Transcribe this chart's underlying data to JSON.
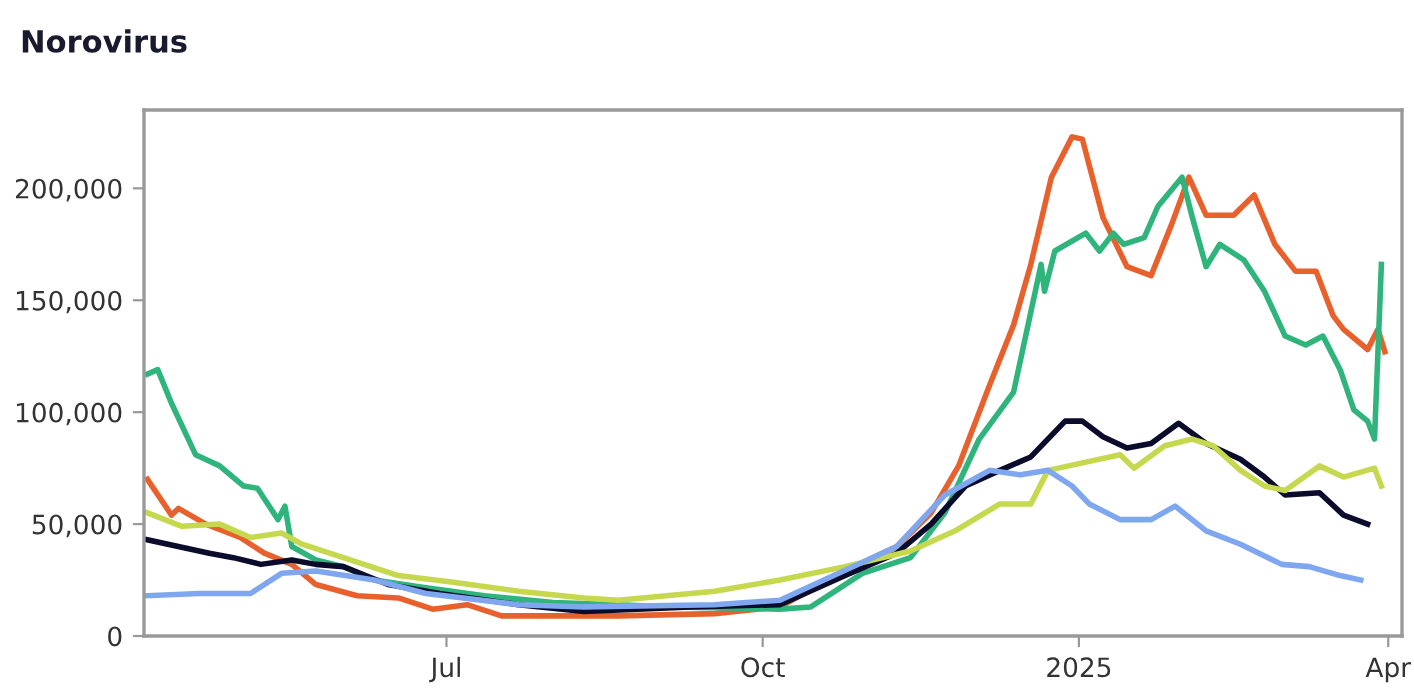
{
  "chart_data": {
    "type": "line",
    "title": "Norovirus",
    "xlim": [
      "2024-04-04",
      "2025-04-05"
    ],
    "xticks": [
      {
        "value": "2024-07-01",
        "label": "Jul"
      },
      {
        "value": "2024-10-01",
        "label": "Oct"
      },
      {
        "value": "2025-01-01",
        "label": "2025"
      },
      {
        "value": "2025-04-01",
        "label": "Apr"
      }
    ],
    "ylim": [
      0,
      235000
    ],
    "yticks": [
      {
        "value": 0,
        "label": "0"
      },
      {
        "value": 50000,
        "label": "50,000"
      },
      {
        "value": 100000,
        "label": "100,000"
      },
      {
        "value": 150000,
        "label": "150,000"
      },
      {
        "value": 200000,
        "label": "200,000"
      }
    ],
    "grid": false,
    "marker": "none",
    "line_style": "solid",
    "series": [
      {
        "color": "#e8612c",
        "x": [
          "2024-04-05",
          "2024-04-12",
          "2024-04-14",
          "2024-04-22",
          "2024-05-02",
          "2024-05-09",
          "2024-05-17",
          "2024-05-24",
          "2024-06-05",
          "2024-06-17",
          "2024-06-27",
          "2024-07-07",
          "2024-07-17",
          "2024-08-01",
          "2024-08-20",
          "2024-09-17",
          "2024-10-06",
          "2024-10-25",
          "2024-11-09",
          "2024-11-19",
          "2024-11-27",
          "2024-12-06",
          "2024-12-13",
          "2024-12-18",
          "2024-12-24",
          "2024-12-30",
          "2025-01-02",
          "2025-01-08",
          "2025-01-15",
          "2025-01-22",
          "2025-01-28",
          "2025-02-02",
          "2025-02-07",
          "2025-02-15",
          "2025-02-21",
          "2025-02-27",
          "2025-03-05",
          "2025-03-11",
          "2025-03-16",
          "2025-03-19",
          "2025-03-26",
          "2025-03-29",
          "2025-03-31"
        ],
        "values": [
          70000,
          54000,
          57000,
          50000,
          44000,
          37000,
          32000,
          23000,
          18000,
          17000,
          12000,
          14000,
          9000,
          9000,
          9000,
          10000,
          13000,
          29000,
          40000,
          55000,
          76000,
          112000,
          139000,
          166000,
          205000,
          223000,
          222000,
          187000,
          165000,
          161000,
          184000,
          205000,
          188000,
          188000,
          197000,
          175000,
          163000,
          163000,
          143000,
          137000,
          128000,
          137000,
          127000
        ]
      },
      {
        "color": "#2fb47c",
        "x": [
          "2024-04-05",
          "2024-04-08",
          "2024-04-12",
          "2024-04-19",
          "2024-04-26",
          "2024-05-03",
          "2024-05-07",
          "2024-05-13",
          "2024-05-15",
          "2024-05-17",
          "2024-05-24",
          "2024-06-01",
          "2024-06-10",
          "2024-06-23",
          "2024-07-12",
          "2024-08-01",
          "2024-08-20",
          "2024-09-05",
          "2024-10-06",
          "2024-10-15",
          "2024-10-30",
          "2024-11-13",
          "2024-11-23",
          "2024-12-03",
          "2024-12-13",
          "2024-12-21",
          "2024-12-22",
          "2024-12-25",
          "2025-01-03",
          "2025-01-07",
          "2025-01-11",
          "2025-01-14",
          "2025-01-20",
          "2025-01-24",
          "2025-01-31",
          "2025-02-03",
          "2025-02-07",
          "2025-02-11",
          "2025-02-18",
          "2025-02-24",
          "2025-03-02",
          "2025-03-08",
          "2025-03-13",
          "2025-03-18",
          "2025-03-22",
          "2025-03-26",
          "2025-03-28",
          "2025-03-30"
        ],
        "values": [
          117000,
          119000,
          104000,
          81000,
          76000,
          67000,
          66000,
          52000,
          58000,
          40000,
          34000,
          31000,
          25000,
          22000,
          18000,
          15000,
          14000,
          13000,
          12000,
          13000,
          28000,
          35000,
          55000,
          88000,
          109000,
          166000,
          154000,
          172000,
          180000,
          172000,
          180000,
          175000,
          178000,
          192000,
          205000,
          187000,
          165000,
          175000,
          168000,
          154000,
          134000,
          130000,
          134000,
          119000,
          101000,
          96000,
          88000,
          166000
        ]
      },
      {
        "color": "#0b0b2b",
        "x": [
          "2024-04-05",
          "2024-04-23",
          "2024-04-30",
          "2024-05-08",
          "2024-05-17",
          "2024-05-24",
          "2024-06-01",
          "2024-06-14",
          "2024-06-29",
          "2024-07-22",
          "2024-08-10",
          "2024-09-10",
          "2024-10-06",
          "2024-10-25",
          "2024-11-09",
          "2024-11-19",
          "2024-11-29",
          "2024-12-09",
          "2024-12-18",
          "2024-12-28",
          "2025-01-02",
          "2025-01-08",
          "2025-01-15",
          "2025-01-22",
          "2025-01-30",
          "2025-02-07",
          "2025-02-17",
          "2025-02-24",
          "2025-03-02",
          "2025-03-12",
          "2025-03-19",
          "2025-03-26"
        ],
        "values": [
          43000,
          37000,
          35000,
          32000,
          34000,
          32000,
          31000,
          23000,
          19000,
          14000,
          11000,
          13000,
          14000,
          27000,
          37000,
          50000,
          67000,
          74000,
          80000,
          96000,
          96000,
          89000,
          84000,
          86000,
          95000,
          86000,
          79000,
          71000,
          63000,
          64000,
          54000,
          50000
        ]
      },
      {
        "color": "#c5d84e",
        "x": [
          "2024-04-05",
          "2024-04-15",
          "2024-04-26",
          "2024-05-05",
          "2024-05-14",
          "2024-05-20",
          "2024-06-01",
          "2024-06-17",
          "2024-07-03",
          "2024-07-22",
          "2024-08-10",
          "2024-08-20",
          "2024-09-17",
          "2024-10-06",
          "2024-10-25",
          "2024-11-13",
          "2024-11-26",
          "2024-12-09",
          "2024-12-18",
          "2024-12-23",
          "2025-01-01",
          "2025-01-13",
          "2025-01-17",
          "2025-01-26",
          "2025-02-03",
          "2025-02-09",
          "2025-02-17",
          "2025-02-24",
          "2025-03-02",
          "2025-03-12",
          "2025-03-19",
          "2025-03-28",
          "2025-03-30"
        ],
        "values": [
          55000,
          49000,
          50000,
          44000,
          46000,
          41000,
          35000,
          27000,
          24000,
          20000,
          17000,
          16000,
          20000,
          25000,
          31000,
          38000,
          47000,
          59000,
          59000,
          74000,
          77000,
          81000,
          75000,
          85000,
          88000,
          85000,
          74000,
          67000,
          65000,
          76000,
          71000,
          75000,
          67000
        ]
      },
      {
        "color": "#7fa7f0",
        "x": [
          "2024-04-05",
          "2024-04-20",
          "2024-05-05",
          "2024-05-14",
          "2024-05-24",
          "2024-06-10",
          "2024-06-25",
          "2024-07-22",
          "2024-08-10",
          "2024-09-17",
          "2024-10-06",
          "2024-11-09",
          "2024-11-23",
          "2024-12-06",
          "2024-12-15",
          "2024-12-23",
          "2024-12-30",
          "2025-01-04",
          "2025-01-13",
          "2025-01-22",
          "2025-01-29",
          "2025-02-07",
          "2025-02-17",
          "2025-03-01",
          "2025-03-09",
          "2025-03-18",
          "2025-03-24"
        ],
        "values": [
          18000,
          19000,
          19000,
          28000,
          29000,
          25000,
          19000,
          14000,
          13000,
          14000,
          16000,
          40000,
          63000,
          74000,
          72000,
          74000,
          67000,
          59000,
          52000,
          52000,
          58000,
          47000,
          41000,
          32000,
          31000,
          27000,
          25000
        ]
      }
    ]
  }
}
